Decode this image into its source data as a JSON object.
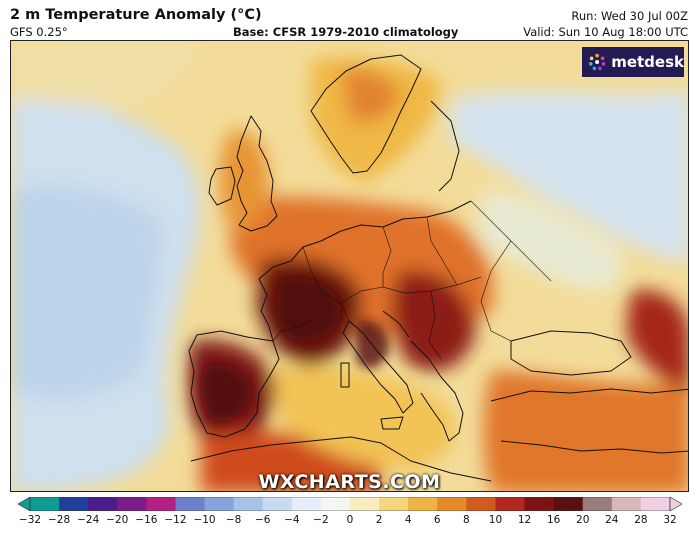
{
  "header": {
    "title": "2 m Temperature Anomaly (°C)",
    "model": "GFS 0.25°",
    "base": "Base: CFSR 1979-2010 climatology",
    "run": "Run: Wed 30 Jul 00Z",
    "valid": "Valid: Sun 10 Aug 18:00 UTC"
  },
  "logo": {
    "text": "metdesk",
    "icon": "metdesk-star-icon"
  },
  "watermark": "WXCHARTS.COM",
  "colorbar": {
    "ticks": [
      "−32",
      "−28",
      "−24",
      "−20",
      "−16",
      "−12",
      "−10",
      "−8",
      "−6",
      "−4",
      "−2",
      "0",
      "2",
      "4",
      "6",
      "8",
      "10",
      "12",
      "16",
      "20",
      "24",
      "28",
      "32"
    ],
    "colors": [
      "#0f9b8f",
      "#1f3f9a",
      "#4b1d8a",
      "#7a1c8c",
      "#b3207f",
      "#6f7fcf",
      "#88a4dc",
      "#a6c3e8",
      "#c6dbf1",
      "#e3eef8",
      "#f6f6f2",
      "#f8ecc0",
      "#f6d57f",
      "#efb243",
      "#e58a2b",
      "#d25a1f",
      "#b3281e",
      "#7d1414",
      "#571111",
      "#9a7c7a",
      "#d7b7b7",
      "#f1cfe3"
    ]
  },
  "colors": {
    "ocean_cold": "#c9dcec",
    "neutral": "#f4ecd2",
    "warm": "#f0b840",
    "hot": "#d9541e",
    "very_hot": "#9a1b14",
    "extreme": "#5a1212",
    "coastline": "#111111"
  }
}
